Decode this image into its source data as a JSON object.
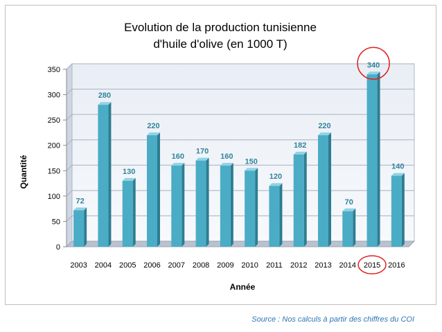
{
  "chart_data": {
    "type": "bar",
    "title_lines": [
      "Evolution de la production tunisienne",
      "d'huile d'olive (en 1000 T)"
    ],
    "xlabel": "Année",
    "ylabel": "Quantité",
    "categories": [
      "2003",
      "2004",
      "2005",
      "2006",
      "2007",
      "2008",
      "2009",
      "2010",
      "2011",
      "2012",
      "2013",
      "2014",
      "2015",
      "2016"
    ],
    "values": [
      72,
      280,
      130,
      220,
      160,
      170,
      160,
      150,
      120,
      182,
      220,
      70,
      340,
      140
    ],
    "data_labels": [
      "72",
      "280",
      "130",
      "220",
      "160",
      "170",
      "160",
      "150",
      "120",
      "182",
      "220",
      "70",
      "340",
      "140"
    ],
    "y_ticks": [
      "0",
      "50",
      "100",
      "150",
      "200",
      "250",
      "300",
      "350"
    ],
    "ylim": [
      0,
      350
    ],
    "grid": true,
    "bar_color": "#4bacc6",
    "label_color": "#31849b",
    "highlight_color": "#e02020",
    "highlighted_category": "2015"
  },
  "source_note": "Source : Nos calculs à partir des chiffres du COI"
}
